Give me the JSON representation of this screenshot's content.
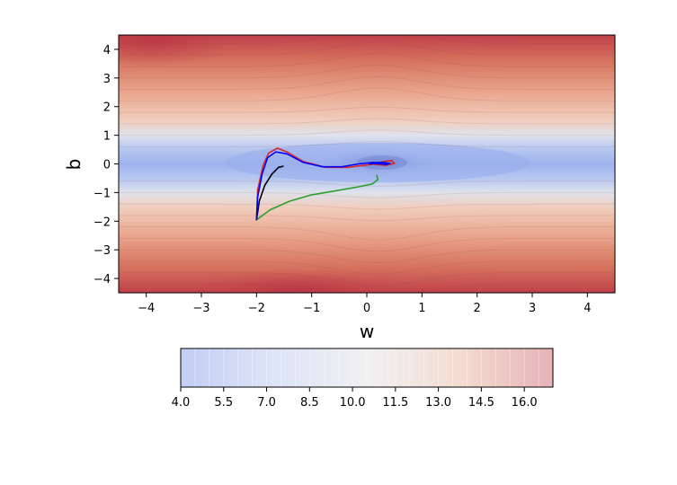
{
  "chart_data": {
    "type": "contour",
    "title": "",
    "xlabel": "w",
    "ylabel": "b",
    "xlim": [
      -4.5,
      4.5
    ],
    "ylim": [
      -4.5,
      4.5
    ],
    "x_ticks": [
      "−4",
      "−3",
      "−2",
      "−1",
      "0",
      "1",
      "2",
      "3",
      "4"
    ],
    "y_ticks": [
      "4",
      "3",
      "2",
      "1",
      "0",
      "−1",
      "−2",
      "−3",
      "−4"
    ],
    "colormap": "coolwarm",
    "colorbar": {
      "min": 4.0,
      "max": 17.0,
      "orientation": "horizontal",
      "tick_values": [
        4.0,
        5.5,
        7.0,
        8.5,
        10.0,
        11.5,
        13.0,
        14.5,
        16.0
      ],
      "tick_labels": [
        "4.0",
        "5.5",
        "7.0",
        "8.5",
        "10.0",
        "11.5",
        "13.0",
        "14.5",
        "16.0"
      ]
    },
    "series": [
      {
        "color": "#2ca02c",
        "points": [
          [
            -2.0,
            -1.95
          ],
          [
            -1.75,
            -1.6
          ],
          [
            -1.4,
            -1.3
          ],
          [
            -1.0,
            -1.08
          ],
          [
            -0.6,
            -0.95
          ],
          [
            -0.2,
            -0.82
          ],
          [
            0.1,
            -0.7
          ],
          [
            0.2,
            -0.55
          ],
          [
            0.18,
            -0.4
          ]
        ]
      },
      {
        "color": "#000000",
        "points": [
          [
            -2.0,
            -1.95
          ],
          [
            -1.95,
            -1.3
          ],
          [
            -1.85,
            -0.75
          ],
          [
            -1.72,
            -0.35
          ],
          [
            -1.6,
            -0.12
          ],
          [
            -1.52,
            -0.08
          ]
        ]
      },
      {
        "color": "#d62728",
        "points": [
          [
            -2.0,
            -1.95
          ],
          [
            -1.98,
            -0.9
          ],
          [
            -1.88,
            -0.05
          ],
          [
            -1.78,
            0.38
          ],
          [
            -1.62,
            0.55
          ],
          [
            -1.45,
            0.42
          ],
          [
            -1.15,
            0.08
          ],
          [
            -0.75,
            -0.12
          ],
          [
            -0.35,
            -0.12
          ],
          [
            -0.05,
            -0.05
          ],
          [
            0.15,
            0.0
          ],
          [
            0.3,
            0.08
          ],
          [
            0.45,
            0.12
          ],
          [
            0.5,
            0.02
          ],
          [
            0.35,
            -0.05
          ],
          [
            0.15,
            -0.02
          ],
          [
            0.05,
            0.02
          ],
          [
            0.12,
            0.05
          ],
          [
            0.25,
            0.0
          ],
          [
            0.2,
            -0.02
          ]
        ]
      },
      {
        "color": "#0000ff",
        "points": [
          [
            -2.0,
            -1.95
          ],
          [
            -1.98,
            -1.15
          ],
          [
            -1.9,
            -0.35
          ],
          [
            -1.8,
            0.22
          ],
          [
            -1.65,
            0.42
          ],
          [
            -1.45,
            0.35
          ],
          [
            -1.15,
            0.05
          ],
          [
            -0.8,
            -0.1
          ],
          [
            -0.45,
            -0.1
          ],
          [
            -0.15,
            0.0
          ],
          [
            0.1,
            0.05
          ],
          [
            0.3,
            0.05
          ],
          [
            0.42,
            0.02
          ],
          [
            0.35,
            -0.02
          ],
          [
            0.15,
            0.02
          ],
          [
            0.05,
            0.0
          ],
          [
            0.12,
            0.02
          ]
        ]
      }
    ]
  }
}
